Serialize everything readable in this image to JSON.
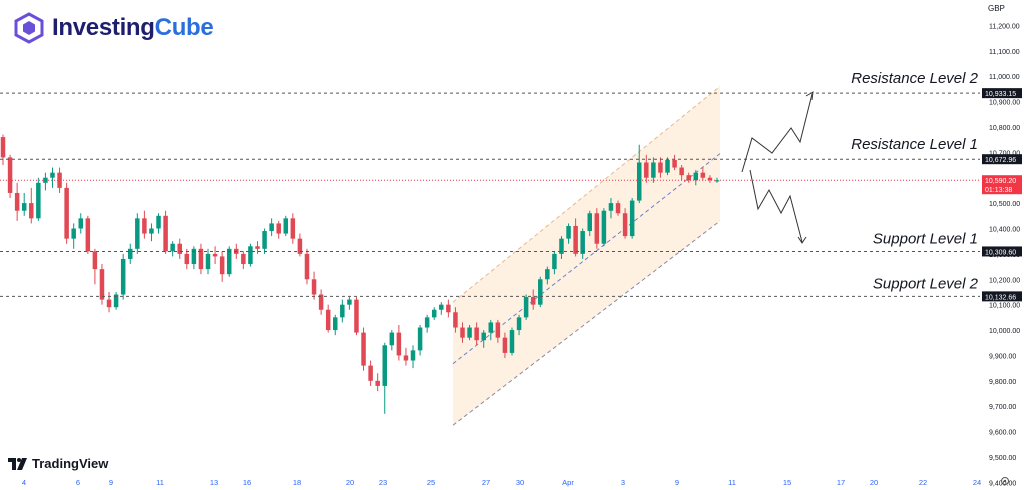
{
  "brand": {
    "name_a": "Investing",
    "name_b": "Cube"
  },
  "footer": {
    "platform": "TradingView"
  },
  "axis": {
    "currency": "GBP"
  },
  "colors": {
    "up": "#089981",
    "down": "#e04854",
    "grid_line": "#555555",
    "channel_fill": "#fdebd6",
    "channel_border": "#e8b88a",
    "price_tag_bg": "#131722",
    "current_tag_bg": "#f23645",
    "current_line": "#f23645",
    "channel_mid": "#6f7fc8"
  },
  "chart_data": {
    "type": "candlestick",
    "symbol_currency": "GBP",
    "y_ticks": [
      "11,200.00",
      "11,100.00",
      "11,000.00",
      "10,900.00",
      "10,800.00",
      "10,700.00",
      "10,600.00",
      "10,500.00",
      "10,400.00",
      "10,300.00",
      "10,200.00",
      "10,100.00",
      "10,000.00",
      "9,900.00",
      "9,800.00",
      "9,700.00",
      "9,600.00",
      "9,500.00",
      "9,400.00"
    ],
    "ylim": [
      9370,
      11300
    ],
    "x_ticks": [
      "4",
      "6",
      "9",
      "11",
      "13",
      "16",
      "18",
      "20",
      "23",
      "25",
      "27",
      "30",
      "Apr",
      "3",
      "9",
      "11",
      "15",
      "17",
      "20",
      "22",
      "24"
    ],
    "levels": [
      {
        "label": "Resistance Level 2",
        "value": 10933.15,
        "tag": "10,933.15"
      },
      {
        "label": "Resistance Level 1",
        "value": 10672.96,
        "tag": "10,672.96"
      },
      {
        "label": "Support Level 1",
        "value": 10309.6,
        "tag": "10,309.60"
      },
      {
        "label": "Support Level 2",
        "value": 10132.66,
        "tag": "10,132.66"
      }
    ],
    "current_price": {
      "value": 10590.2,
      "tag": "10,590.20",
      "countdown": "01:13:38"
    },
    "candles": [
      [
        10760,
        10770,
        10650,
        10680
      ],
      [
        10680,
        10690,
        10520,
        10540
      ],
      [
        10540,
        10580,
        10430,
        10470
      ],
      [
        10470,
        10540,
        10450,
        10500
      ],
      [
        10500,
        10560,
        10420,
        10440
      ],
      [
        10440,
        10600,
        10430,
        10580
      ],
      [
        10580,
        10620,
        10550,
        10600
      ],
      [
        10600,
        10640,
        10560,
        10620
      ],
      [
        10620,
        10640,
        10540,
        10560
      ],
      [
        10560,
        10580,
        10340,
        10360
      ],
      [
        10360,
        10420,
        10320,
        10400
      ],
      [
        10400,
        10460,
        10380,
        10440
      ],
      [
        10440,
        10450,
        10300,
        10310
      ],
      [
        10310,
        10320,
        10180,
        10240
      ],
      [
        10240,
        10260,
        10100,
        10120
      ],
      [
        10120,
        10150,
        10070,
        10090
      ],
      [
        10090,
        10150,
        10080,
        10140
      ],
      [
        10140,
        10300,
        10120,
        10280
      ],
      [
        10280,
        10340,
        10260,
        10320
      ],
      [
        10320,
        10460,
        10300,
        10440
      ],
      [
        10440,
        10470,
        10360,
        10380
      ],
      [
        10380,
        10420,
        10350,
        10400
      ],
      [
        10400,
        10460,
        10380,
        10450
      ],
      [
        10450,
        10470,
        10300,
        10310
      ],
      [
        10310,
        10350,
        10290,
        10340
      ],
      [
        10340,
        10360,
        10280,
        10300
      ],
      [
        10300,
        10320,
        10240,
        10260
      ],
      [
        10260,
        10330,
        10240,
        10320
      ],
      [
        10320,
        10340,
        10220,
        10240
      ],
      [
        10240,
        10320,
        10220,
        10300
      ],
      [
        10300,
        10330,
        10260,
        10290
      ],
      [
        10290,
        10310,
        10190,
        10220
      ],
      [
        10220,
        10330,
        10210,
        10320
      ],
      [
        10320,
        10340,
        10280,
        10300
      ],
      [
        10300,
        10310,
        10240,
        10260
      ],
      [
        10260,
        10340,
        10250,
        10330
      ],
      [
        10330,
        10350,
        10300,
        10320
      ],
      [
        10320,
        10400,
        10300,
        10390
      ],
      [
        10390,
        10440,
        10370,
        10420
      ],
      [
        10420,
        10430,
        10360,
        10380
      ],
      [
        10380,
        10450,
        10370,
        10440
      ],
      [
        10440,
        10460,
        10340,
        10360
      ],
      [
        10360,
        10380,
        10290,
        10300
      ],
      [
        10300,
        10320,
        10180,
        10200
      ],
      [
        10200,
        10230,
        10120,
        10140
      ],
      [
        10140,
        10160,
        10060,
        10080
      ],
      [
        10080,
        10100,
        9990,
        10000
      ],
      [
        10000,
        10060,
        9980,
        10050
      ],
      [
        10050,
        10120,
        10030,
        10100
      ],
      [
        10100,
        10130,
        10080,
        10120
      ],
      [
        10120,
        10130,
        9980,
        9990
      ],
      [
        9990,
        10010,
        9840,
        9860
      ],
      [
        9860,
        9880,
        9780,
        9800
      ],
      [
        9800,
        9830,
        9760,
        9780
      ],
      [
        9780,
        9950,
        9670,
        9940
      ],
      [
        9940,
        10000,
        9920,
        9990
      ],
      [
        9990,
        10020,
        9880,
        9900
      ],
      [
        9900,
        9930,
        9860,
        9880
      ],
      [
        9880,
        9940,
        9850,
        9920
      ],
      [
        9920,
        10020,
        9900,
        10010
      ],
      [
        10010,
        10060,
        9990,
        10050
      ],
      [
        10050,
        10090,
        10040,
        10080
      ],
      [
        10080,
        10110,
        10060,
        10100
      ],
      [
        10100,
        10120,
        10050,
        10070
      ],
      [
        10070,
        10090,
        9990,
        10010
      ],
      [
        10010,
        10030,
        9950,
        9970
      ],
      [
        9970,
        10020,
        9960,
        10010
      ],
      [
        10010,
        10030,
        9940,
        9960
      ],
      [
        9960,
        10000,
        9930,
        9990
      ],
      [
        9990,
        10040,
        9960,
        10030
      ],
      [
        10030,
        10040,
        9950,
        9970
      ],
      [
        9970,
        9990,
        9890,
        9910
      ],
      [
        9910,
        10010,
        9900,
        10000
      ],
      [
        10000,
        10060,
        9980,
        10050
      ],
      [
        10050,
        10140,
        10040,
        10130
      ],
      [
        10130,
        10160,
        10080,
        10100
      ],
      [
        10100,
        10210,
        10090,
        10200
      ],
      [
        10200,
        10250,
        10180,
        10240
      ],
      [
        10240,
        10310,
        10220,
        10300
      ],
      [
        10300,
        10370,
        10280,
        10360
      ],
      [
        10360,
        10420,
        10340,
        10410
      ],
      [
        10410,
        10440,
        10290,
        10300
      ],
      [
        10300,
        10400,
        10280,
        10390
      ],
      [
        10390,
        10470,
        10370,
        10460
      ],
      [
        10460,
        10480,
        10320,
        10340
      ],
      [
        10340,
        10480,
        10330,
        10470
      ],
      [
        10470,
        10520,
        10440,
        10500
      ],
      [
        10500,
        10510,
        10450,
        10460
      ],
      [
        10460,
        10480,
        10360,
        10370
      ],
      [
        10370,
        10520,
        10360,
        10510
      ],
      [
        10510,
        10730,
        10500,
        10660
      ],
      [
        10660,
        10690,
        10580,
        10600
      ],
      [
        10600,
        10680,
        10580,
        10660
      ],
      [
        10660,
        10680,
        10600,
        10620
      ],
      [
        10620,
        10680,
        10610,
        10670
      ],
      [
        10670,
        10690,
        10630,
        10640
      ],
      [
        10640,
        10650,
        10590,
        10610
      ],
      [
        10610,
        10620,
        10580,
        10590
      ],
      [
        10590,
        10630,
        10570,
        10620
      ],
      [
        10620,
        10640,
        10590,
        10600
      ],
      [
        10600,
        10610,
        10580,
        10590
      ],
      [
        10590,
        10600,
        10580,
        10590
      ]
    ]
  }
}
